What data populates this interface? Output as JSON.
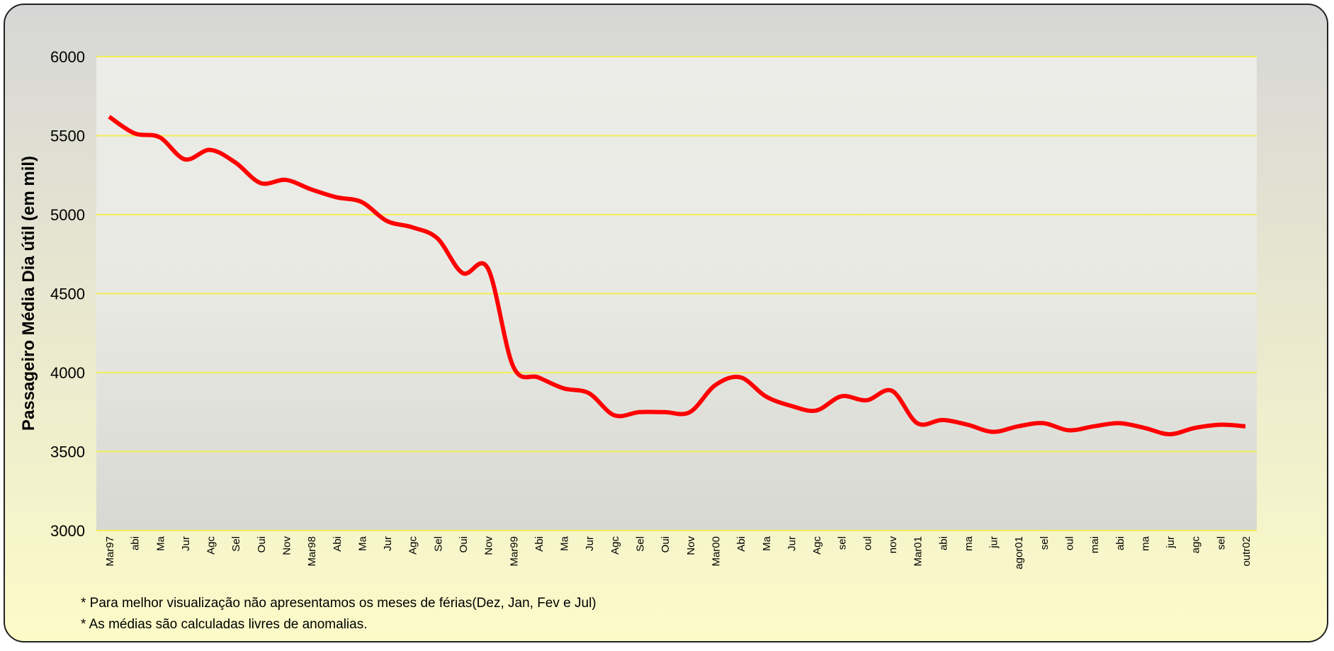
{
  "chart_data": {
    "type": "line",
    "y_label": "Passageiro Média Dia útil (em mil)",
    "categories": [
      "Mar97",
      "abi",
      "Ma",
      "Jur",
      "Agc",
      "Sel",
      "Oui",
      "Nov",
      "Mar98",
      "Abi",
      "Ma",
      "Jur",
      "Agc",
      "Sel",
      "Oui",
      "Nov",
      "Mar99",
      "Abi",
      "Ma",
      "Jur",
      "Agc",
      "Sel",
      "Oui",
      "Nov",
      "Mar00",
      "Abi",
      "Ma",
      "Jur",
      "Agc",
      "sel",
      "oul",
      "nov",
      "Mar01",
      "abi",
      "ma",
      "jur",
      "agor01",
      "sel",
      "oul",
      "mai",
      "abi",
      "ma",
      "jur",
      "agc",
      "sel",
      "outr02"
    ],
    "series": [
      {
        "color": "#ff0000",
        "values": [
          5620,
          5515,
          5490,
          5350,
          5410,
          5330,
          5200,
          5220,
          5160,
          5110,
          5080,
          4960,
          4920,
          4850,
          4630,
          4660,
          4040,
          3970,
          3900,
          3870,
          3730,
          3750,
          3750,
          3750,
          3920,
          3970,
          3850,
          3790,
          3760,
          3850,
          3825,
          3885,
          3680,
          3700,
          3670,
          3625,
          3660,
          3680,
          3635,
          3660,
          3680,
          3650,
          3610,
          3650,
          3670,
          3660
        ]
      }
    ],
    "ylim": [
      3000,
      6000
    ],
    "yticks": [
      3000,
      3500,
      4000,
      4500,
      5000,
      5500,
      6000
    ],
    "grid": true,
    "grid_color": "#f2ee55",
    "notes": [
      "* Para melhor visualização não apresentamos os meses de férias(Dez, Jan, Fev e Jul)",
      "* As médias são calculadas livres de anomalias."
    ]
  }
}
